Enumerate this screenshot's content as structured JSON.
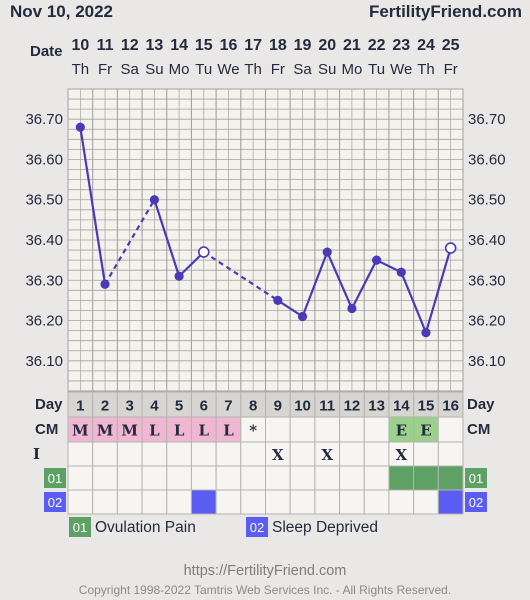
{
  "header": {
    "date": "Nov 10, 2022",
    "site": "FertilityFriend.com"
  },
  "date_label": "Date",
  "day_label": "Day",
  "cm_label": "CM",
  "i_label": "I",
  "colors": {
    "line": "#4a3ab5",
    "grid": "#a4a39f",
    "cm_pink": "#f0b7d2",
    "cm_green": "#9bd08d",
    "ovulation": "#5ea165",
    "sleep": "#5a5cf2",
    "day_cell": "#d6d5d2",
    "chart_bg": "#f3f2ec"
  },
  "chart_data": {
    "type": "line",
    "x": [
      10,
      11,
      12,
      13,
      14,
      15,
      16,
      17,
      18,
      19,
      20,
      21,
      22,
      23,
      24,
      25
    ],
    "weekdays": [
      "Th",
      "Fr",
      "Sa",
      "Su",
      "Mo",
      "Tu",
      "We",
      "Th",
      "Fr",
      "Sa",
      "Su",
      "Mo",
      "Tu",
      "We",
      "Th",
      "Fr"
    ],
    "cycle_days": [
      1,
      2,
      3,
      4,
      5,
      6,
      7,
      8,
      9,
      10,
      11,
      12,
      13,
      14,
      15,
      16
    ],
    "temperatures": [
      36.68,
      36.29,
      null,
      36.5,
      36.31,
      36.37,
      null,
      null,
      36.25,
      36.21,
      36.37,
      36.23,
      36.35,
      36.32,
      36.17,
      36.38
    ],
    "open_points": [
      false,
      false,
      false,
      false,
      false,
      true,
      false,
      false,
      false,
      false,
      false,
      false,
      false,
      false,
      false,
      true
    ],
    "line_segments": [
      {
        "from": 0,
        "to": 1,
        "style": "solid"
      },
      {
        "from": 1,
        "to": 3,
        "style": "dashed"
      },
      {
        "from": 3,
        "to": 4,
        "style": "solid"
      },
      {
        "from": 4,
        "to": 5,
        "style": "solid"
      },
      {
        "from": 5,
        "to": 8,
        "style": "dashed"
      },
      {
        "from": 8,
        "to": 9,
        "style": "solid"
      },
      {
        "from": 9,
        "to": 10,
        "style": "solid"
      },
      {
        "from": 10,
        "to": 11,
        "style": "solid"
      },
      {
        "from": 11,
        "to": 12,
        "style": "solid"
      },
      {
        "from": 12,
        "to": 13,
        "style": "solid"
      },
      {
        "from": 13,
        "to": 14,
        "style": "solid"
      },
      {
        "from": 14,
        "to": 15,
        "style": "solid"
      }
    ],
    "y_ticks": [
      "36.70",
      "36.60",
      "36.50",
      "36.40",
      "36.30",
      "36.20",
      "36.10"
    ],
    "ylim": [
      36.025,
      36.775
    ],
    "cm": [
      "M",
      "M",
      "M",
      "L",
      "L",
      "L",
      "L",
      "*",
      "",
      "",
      "",
      "",
      "",
      "E",
      "E",
      ""
    ],
    "i": [
      "",
      "",
      "",
      "",
      "",
      "",
      "",
      "",
      "X",
      "",
      "X",
      "",
      "",
      "X",
      "",
      ""
    ],
    "row_01": [
      false,
      false,
      false,
      false,
      false,
      false,
      false,
      false,
      false,
      false,
      false,
      false,
      false,
      true,
      true,
      true
    ],
    "row_02": [
      false,
      false,
      false,
      false,
      false,
      true,
      false,
      false,
      false,
      false,
      false,
      false,
      false,
      false,
      false,
      true
    ]
  },
  "legend": [
    {
      "code": "01",
      "label": "Ovulation Pain",
      "color": "#5ea165"
    },
    {
      "code": "02",
      "label": "Sleep Deprived",
      "color": "#5a5cf2"
    }
  ],
  "footer": {
    "url": "https://FertilityFriend.com",
    "copyright": "Copyright 1998-2022 Tamtris Web Services Inc. - All Rights Reserved."
  }
}
